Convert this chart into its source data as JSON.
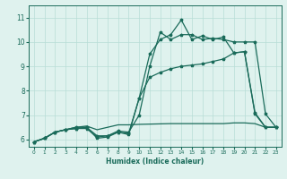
{
  "xlabel": "Humidex (Indice chaleur)",
  "bg_color": "#dff2ee",
  "grid_color": "#b8ddd6",
  "line_color": "#1a6b5a",
  "xlim": [
    -0.5,
    23.5
  ],
  "ylim": [
    5.7,
    11.5
  ],
  "xticks": [
    0,
    1,
    2,
    3,
    4,
    5,
    6,
    7,
    8,
    9,
    10,
    11,
    12,
    13,
    14,
    15,
    16,
    17,
    18,
    19,
    20,
    21,
    22,
    23
  ],
  "yticks": [
    6,
    7,
    8,
    9,
    10,
    11
  ],
  "line_flat_x": [
    0,
    1,
    2,
    3,
    4,
    5,
    6,
    7,
    8,
    9,
    10,
    11,
    12,
    13,
    14,
    15,
    16,
    17,
    18,
    19,
    20,
    21,
    22,
    23
  ],
  "line_flat_y": [
    5.9,
    6.05,
    6.3,
    6.4,
    6.5,
    6.55,
    6.4,
    6.5,
    6.6,
    6.6,
    6.62,
    6.63,
    6.64,
    6.65,
    6.65,
    6.65,
    6.65,
    6.65,
    6.65,
    6.68,
    6.68,
    6.65,
    6.5,
    6.5
  ],
  "line_mid_x": [
    0,
    1,
    2,
    3,
    4,
    5,
    6,
    7,
    8,
    9,
    10,
    11,
    12,
    13,
    14,
    15,
    16,
    17,
    18,
    19,
    20,
    21,
    22,
    23
  ],
  "line_mid_y": [
    5.9,
    6.05,
    6.3,
    6.4,
    6.45,
    6.45,
    6.1,
    6.15,
    6.3,
    6.25,
    7.7,
    8.55,
    8.75,
    8.9,
    9.0,
    9.05,
    9.1,
    9.2,
    9.3,
    9.55,
    9.6,
    7.05,
    6.5,
    6.5
  ],
  "line_high_x": [
    0,
    1,
    2,
    3,
    4,
    5,
    6,
    7,
    8,
    9,
    10,
    11,
    12,
    13,
    14,
    15,
    16,
    17,
    18,
    19,
    20,
    21,
    22,
    23
  ],
  "line_high_y": [
    5.9,
    6.05,
    6.3,
    6.4,
    6.45,
    6.5,
    6.15,
    6.15,
    6.35,
    6.3,
    7.0,
    9.0,
    10.4,
    10.1,
    10.3,
    10.3,
    10.1,
    10.15,
    10.1,
    10.0,
    10.0,
    10.0,
    7.05,
    6.5
  ],
  "line_peak_x": [
    0,
    1,
    2,
    3,
    4,
    5,
    6,
    7,
    8,
    9,
    10,
    11,
    12,
    13,
    14,
    15,
    16,
    17,
    18,
    19,
    20,
    21,
    22,
    23
  ],
  "line_peak_y": [
    5.9,
    6.05,
    6.3,
    6.4,
    6.5,
    6.5,
    6.05,
    6.1,
    6.3,
    6.2,
    7.7,
    9.5,
    10.1,
    10.3,
    10.9,
    10.1,
    10.25,
    10.1,
    10.2,
    9.55,
    9.6,
    7.1,
    6.5,
    6.5
  ]
}
